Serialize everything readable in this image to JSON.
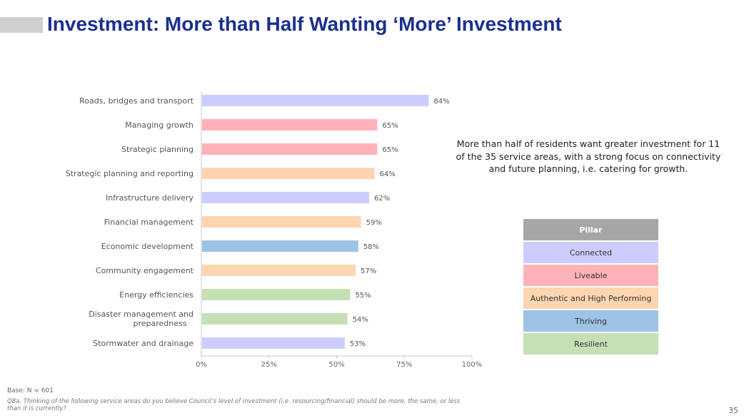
{
  "title": "Investment: More than Half Wanting ‘More’ Investment",
  "insight": "More than half of residents want greater investment for 11 of the 35 service areas, with a strong focus on connectivity and future planning, i.e. catering for growth.",
  "legend": {
    "header": "Pillar",
    "items": [
      {
        "label": "Connected",
        "color": "#ccccff"
      },
      {
        "label": "Liveable",
        "color": "#ffb3b8"
      },
      {
        "label": "Authentic and High Performing",
        "color": "#fdd5b1"
      },
      {
        "label": "Thriving",
        "color": "#9dc3e6"
      },
      {
        "label": "Resilient",
        "color": "#c5e0b4"
      }
    ]
  },
  "chart_data": {
    "type": "bar",
    "orientation": "horizontal",
    "categories": [
      "Roads, bridges and transport",
      "Managing growth",
      "Strategic planning",
      "Strategic planning and reporting",
      "Infrastructure delivery",
      "Financial management",
      "Economic development",
      "Community engagement",
      "Energy efficiencies",
      "Disaster management and preparedness",
      "Stormwater and drainage"
    ],
    "values": [
      84,
      65,
      65,
      64,
      62,
      59,
      58,
      57,
      55,
      54,
      53
    ],
    "value_labels": [
      "84%",
      "65%",
      "65%",
      "64%",
      "62%",
      "59%",
      "58%",
      "57%",
      "55%",
      "54%",
      "53%"
    ],
    "bar_pillars": [
      "Connected",
      "Liveable",
      "Liveable",
      "Authentic and High Performing",
      "Connected",
      "Authentic and High Performing",
      "Thriving",
      "Authentic and High Performing",
      "Resilient",
      "Resilient",
      "Connected"
    ],
    "xlim": [
      0,
      100
    ],
    "xticks": [
      "0%",
      "25%",
      "50%",
      "75%",
      "100%"
    ],
    "grid": false
  },
  "footer": {
    "base": "Base: N = 601",
    "question": "Q8a. Thinking of the following service areas do you believe Council’s level of investment (i.e. resourcing/financial) should be more, the same, or less than it is currently?",
    "page": "35"
  }
}
